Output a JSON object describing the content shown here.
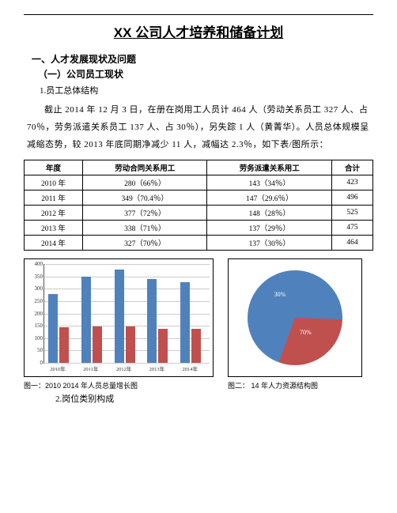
{
  "title": "XX 公司人才培养和储备计划",
  "section1": "一、人才发展现状及问题",
  "section1_1": "（一）公司员工现状",
  "section1_1_1": "1.员工总体结构",
  "para1": "截止 2014 年 12 月 3 日，在册在岗用工人员计 464 人（劳动关系员工 327 人、占 70％，劳务派遣关系员工 137 人、占 30％），另失踪 1 人（黄菁华）。人员总体规模呈减缩态势，较 2013 年底同期净减少 11 人，减幅达 2.3％，如下表/图所示：",
  "table": {
    "headers": [
      "年度",
      "劳动合同关系用工",
      "劳务派遣关系用工",
      "合计"
    ],
    "rows": [
      [
        "2010 年",
        "280（66％）",
        "143（34％）",
        "423"
      ],
      [
        "2011 年",
        "349（70.4％）",
        "147（29.6％）",
        "496"
      ],
      [
        "2012 年",
        "377（72％）",
        "148（28％）",
        "525"
      ],
      [
        "2013 年",
        "338（71％）",
        "137（29％）",
        "475"
      ],
      [
        "2014 年",
        "327（70％）",
        "137（30％）",
        "464"
      ]
    ]
  },
  "bar_chart": {
    "ymax": 400,
    "ytick_step": 50,
    "grid_color": "#cccccc",
    "categories": [
      "2010年",
      "2011年",
      "2012年",
      "2013年",
      "2014年"
    ],
    "series_a": [
      280,
      349,
      377,
      338,
      327
    ],
    "series_b": [
      143,
      147,
      148,
      137,
      137
    ],
    "color_a": "#4f81bd",
    "color_b": "#c0504d"
  },
  "pie_chart": {
    "slices": [
      {
        "label": "70%",
        "value": 70,
        "color": "#4f81bd"
      },
      {
        "label": "30%",
        "value": 30,
        "color": "#c0504d"
      }
    ]
  },
  "caption1": "图一：2010 2014 年人员总量增长图",
  "caption2": "图二：  14 年人力资源结构图",
  "section1_1_2": "2.岗位类别构成"
}
